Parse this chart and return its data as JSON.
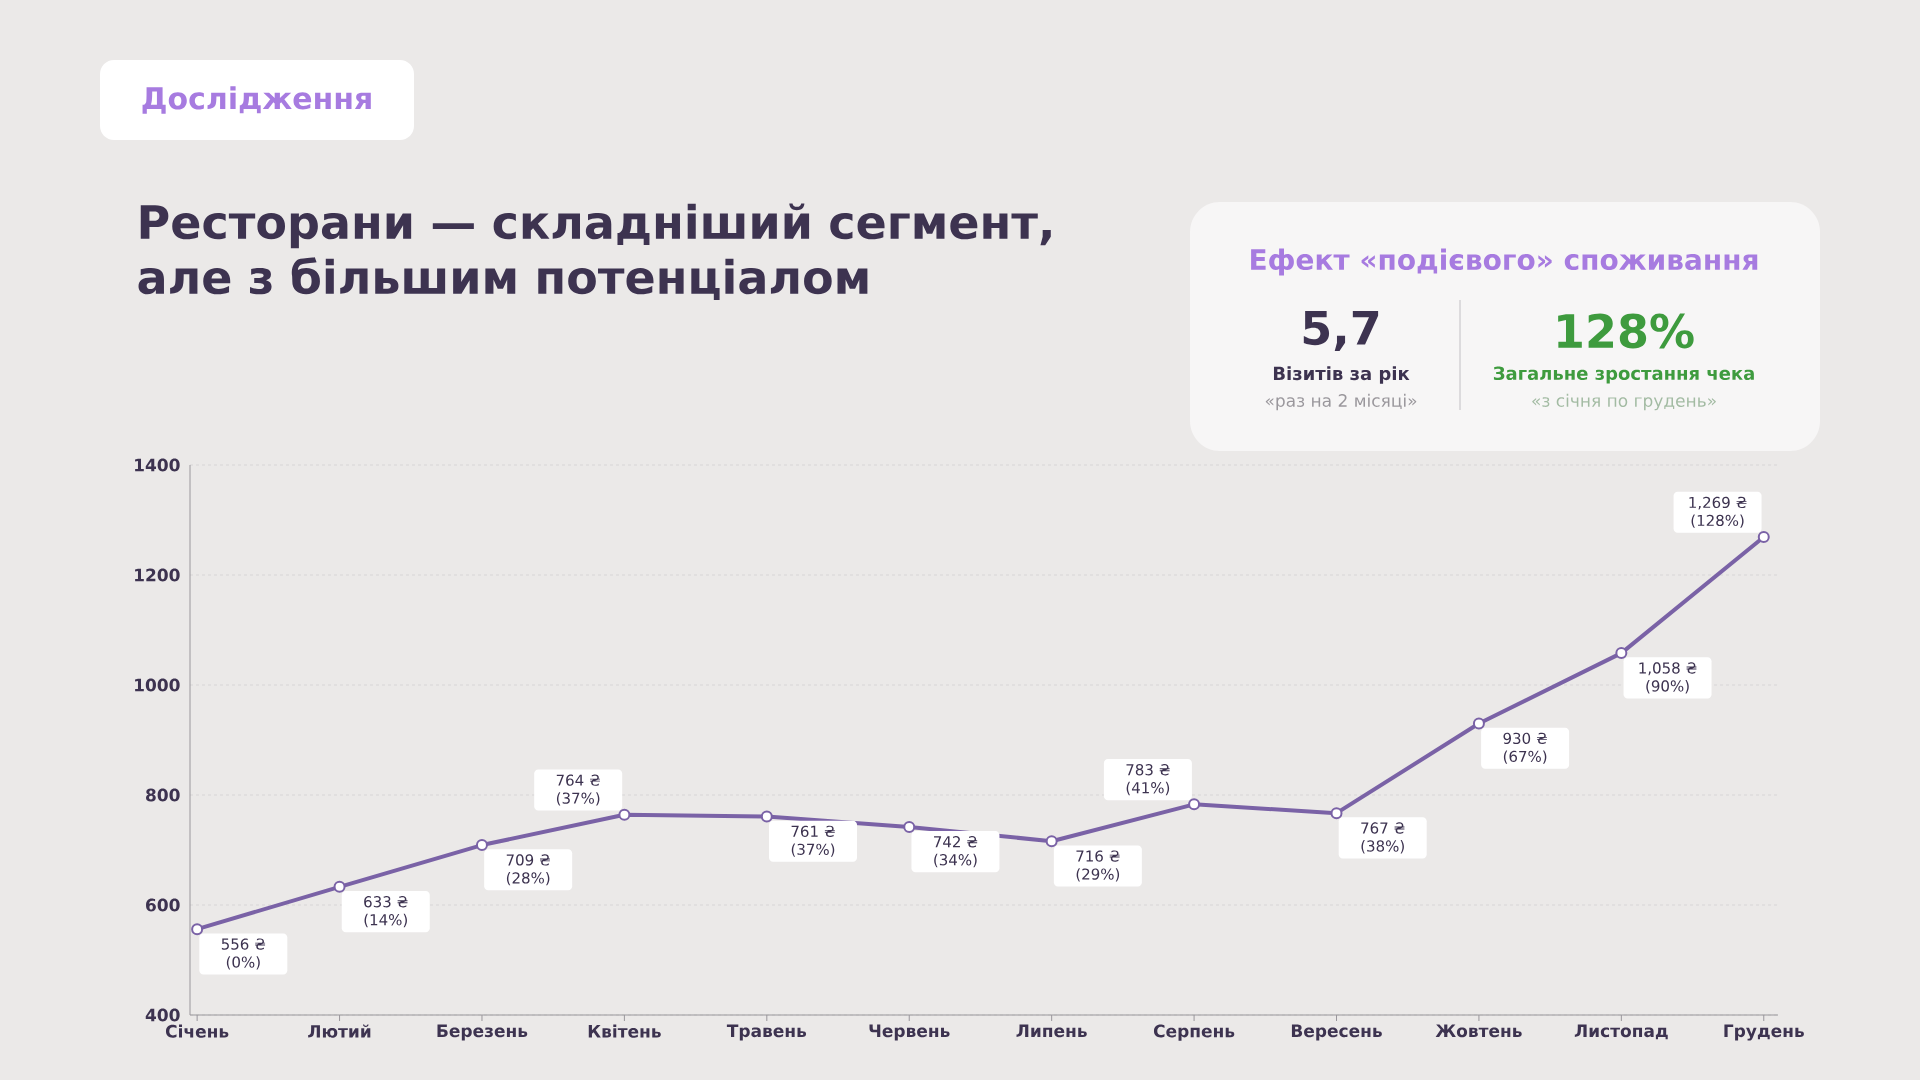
{
  "chart_data": {
    "type": "line",
    "title": "Ресторани — складніший сегмент, але з більшим потенціалом",
    "categories": [
      "Січень",
      "Лютий",
      "Березень",
      "Квітень",
      "Травень",
      "Червень",
      "Липень",
      "Серпень",
      "Вересень",
      "Жовтень",
      "Листопад",
      "Грудень"
    ],
    "values": [
      556,
      633,
      709,
      764,
      761,
      742,
      716,
      783,
      767,
      930,
      1058,
      1269
    ],
    "value_labels": [
      "556 ₴ (0%)",
      "633 ₴ (14%)",
      "709 ₴ (28%)",
      "764 ₴ (37%)",
      "761 ₴ (37%)",
      "742 ₴ (34%)",
      "716 ₴ (29%)",
      "783 ₴ (41%)",
      "767 ₴ (38%)",
      "930 ₴ (67%)",
      "1,058 ₴ (90%)",
      "1,269 ₴ (128%)"
    ],
    "color": "#7a62a6",
    "ylim": [
      400,
      1400
    ],
    "yticks": [
      400,
      600,
      800,
      1000,
      1200,
      1400
    ],
    "grid": "y",
    "marker": "circle",
    "line_style": "solid",
    "annotations": [
      "Дослідження",
      "Ефект «подієвого» споживання",
      "5,7",
      "Візитів за рік",
      "«раз на 2 місяці»",
      "128%",
      "Загальне зростання чека",
      "«з січня по грудень»"
    ]
  }
}
